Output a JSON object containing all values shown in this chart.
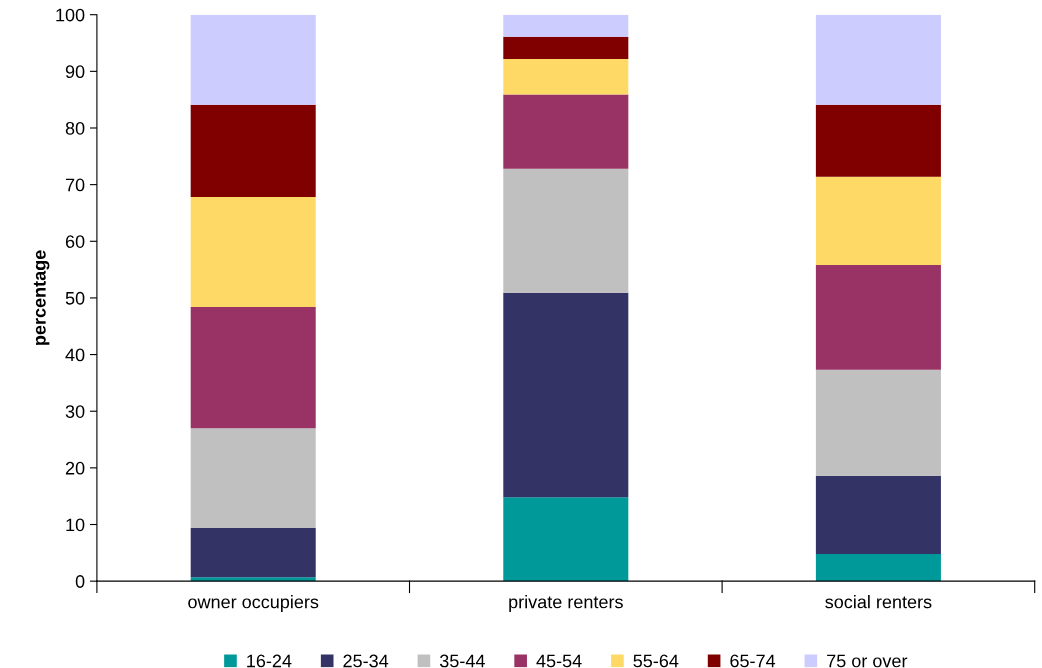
{
  "chart_data": {
    "type": "bar",
    "stacked": true,
    "ylabel": "percentage",
    "categories": [
      "owner occupiers",
      "private renters",
      "social renters"
    ],
    "series": [
      {
        "name": "16-24",
        "color": "#009999",
        "values": [
          0.7,
          14.8,
          4.8
        ]
      },
      {
        "name": "25-34",
        "color": "#333366",
        "values": [
          8.7,
          36.1,
          13.8
        ]
      },
      {
        "name": "35-44",
        "color": "#c0c0c0",
        "values": [
          17.6,
          21.9,
          18.7
        ]
      },
      {
        "name": "45-54",
        "color": "#993366",
        "values": [
          21.4,
          13.1,
          18.5
        ]
      },
      {
        "name": "55-64",
        "color": "#ffd966",
        "values": [
          19.4,
          6.3,
          15.6
        ]
      },
      {
        "name": "65-74",
        "color": "#800000",
        "values": [
          16.3,
          3.9,
          12.7
        ]
      },
      {
        "name": "75 or over",
        "color": "#ccccff",
        "values": [
          15.9,
          3.9,
          15.9
        ]
      }
    ],
    "ylim": [
      0,
      100
    ],
    "yticks": [
      0,
      10,
      20,
      30,
      40,
      50,
      60,
      70,
      80,
      90,
      100
    ],
    "grid": false,
    "legend": "bottom"
  }
}
